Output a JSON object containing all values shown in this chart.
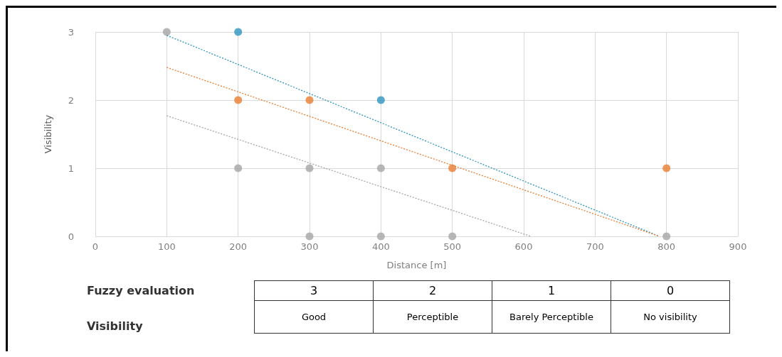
{
  "chart_data": {
    "type": "scatter",
    "xlabel": "Distance [m]",
    "ylabel": "Visibility",
    "xlim": [
      0,
      900
    ],
    "xticks": [
      0,
      100,
      200,
      300,
      400,
      500,
      600,
      700,
      800,
      900
    ],
    "ylim": [
      0,
      3
    ],
    "yticks": [
      0,
      1,
      2,
      3
    ],
    "grid": true,
    "marker": "circle",
    "series": [
      {
        "color": "#2e95c0",
        "x": [
          200,
          400
        ],
        "values": [
          3,
          2
        ]
      },
      {
        "color": "#e97d31",
        "x": [
          200,
          300,
          500,
          800
        ],
        "values": [
          2,
          2,
          1,
          1
        ]
      },
      {
        "color": "#a5a5a5",
        "x": [
          100,
          200,
          300,
          400,
          300,
          400,
          500,
          800
        ],
        "values": [
          3,
          1,
          1,
          1,
          0,
          0,
          0,
          0
        ]
      },
      {
        "type": "line",
        "color": "#2e95c0",
        "line_style": "dotted",
        "marker": "none",
        "x": [
          100,
          790
        ],
        "values": [
          2.95,
          0
        ]
      },
      {
        "type": "line",
        "color": "#e97d31",
        "line_style": "dotted",
        "marker": "none",
        "x": [
          100,
          790
        ],
        "values": [
          2.48,
          0
        ]
      },
      {
        "type": "line",
        "color": "#a5a5a5",
        "line_style": "dotted",
        "marker": "none",
        "x": [
          100,
          610
        ],
        "values": [
          1.77,
          0
        ]
      }
    ],
    "annotations": [
      "Fuzzy evaluation",
      "3",
      "2",
      "1",
      "0",
      "Visibility",
      "Good",
      "Perceptible",
      "Barely Perceptible",
      "No visibility"
    ]
  }
}
